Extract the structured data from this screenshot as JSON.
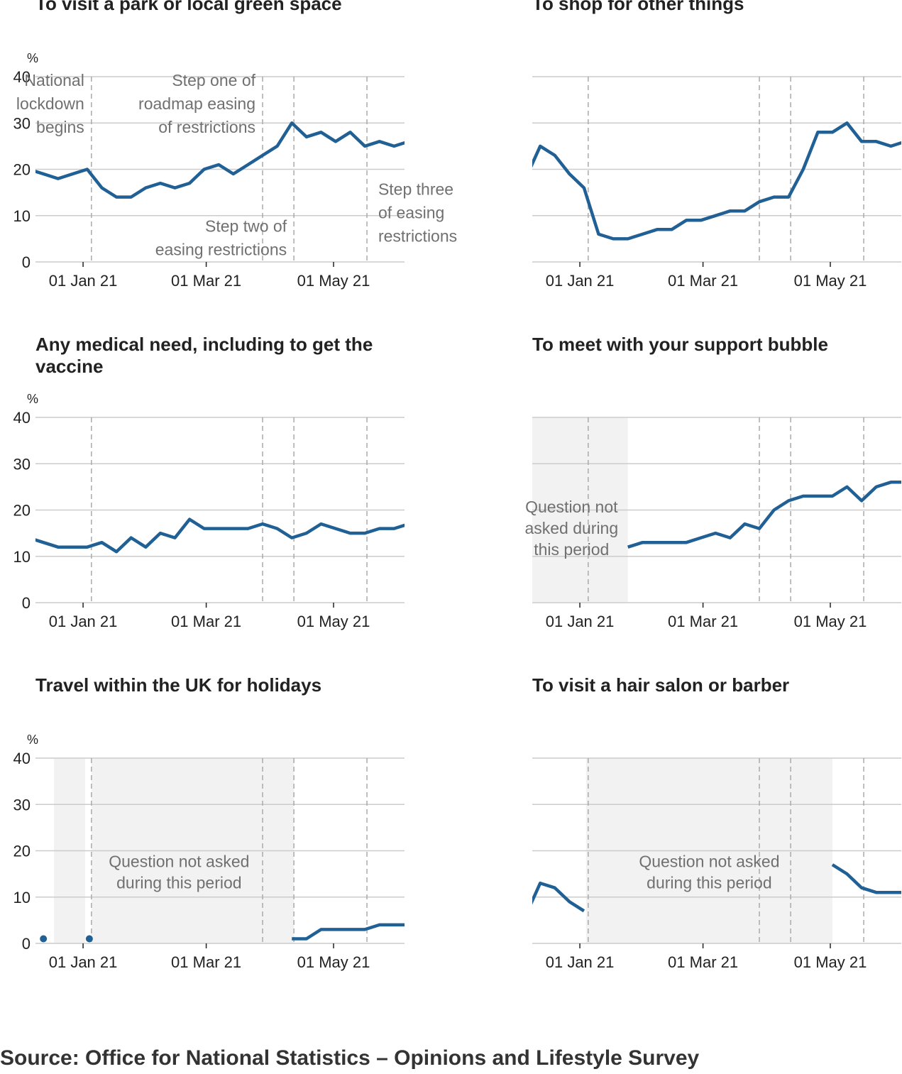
{
  "colors": {
    "line": "#206095",
    "grid": "#cccccc",
    "event": "#aaaaaa",
    "shade": "#f2f2f2",
    "axis": "#222222",
    "annotation": "#707070"
  },
  "source": "Source: Office for National Statistics – Opinions and Lifestyle Survey",
  "chart_data": [
    {
      "type": "line",
      "title": "To visit a park or local green space",
      "ylabel": "%",
      "ylim": [
        0,
        40
      ],
      "yticks": [
        0,
        10,
        20,
        30,
        40
      ],
      "xlim": [
        -22.8,
        154
      ],
      "xticks": [
        {
          "v": 0,
          "label": "01 Jan 21"
        },
        {
          "v": 59,
          "label": "01 Mar 21"
        },
        {
          "v": 120,
          "label": "01 May 21"
        }
      ],
      "events": [
        4,
        86,
        101,
        136
      ],
      "event_labels": [
        {
          "x": 4,
          "y": 38,
          "anchor": "end",
          "lines": [
            "National",
            "lockdown",
            "begins"
          ]
        },
        {
          "x": 86,
          "y": 38,
          "anchor": "end",
          "lines": [
            "Step one of",
            "roadmap easing",
            "of restrictions"
          ]
        },
        {
          "x": 101,
          "y": 6.5,
          "anchor": "end",
          "lines": [
            "Step two of",
            "easing restrictions"
          ]
        },
        {
          "x": 138,
          "y": 14.5,
          "anchor": "start",
          "lines": [
            "Step three",
            "of easing",
            "restrictions"
          ]
        }
      ],
      "show_y_labels": true,
      "series": [
        {
          "name": "Percent",
          "segments": [
            {
              "x": [
                -26,
                -19,
                -12,
                -5,
                2,
                9,
                16,
                23,
                30,
                37,
                44,
                51,
                58,
                65,
                72,
                79,
                86,
                93,
                100,
                107,
                114,
                121,
                128,
                135,
                142,
                149,
                156
              ],
              "y": [
                20,
                19,
                18,
                19,
                20,
                16,
                14,
                14,
                16,
                17,
                16,
                17,
                20,
                21,
                19,
                21,
                23,
                25,
                30,
                27,
                28,
                26,
                28,
                25,
                26,
                25,
                26
              ]
            }
          ]
        }
      ]
    },
    {
      "type": "line",
      "title": "To shop for other things",
      "ylabel": "",
      "ylim": [
        0,
        40
      ],
      "yticks": [
        0,
        10,
        20,
        30,
        40
      ],
      "xlim": [
        -22.8,
        154
      ],
      "xticks": [
        {
          "v": 0,
          "label": "01 Jan 21"
        },
        {
          "v": 59,
          "label": "01 Mar 21"
        },
        {
          "v": 120,
          "label": "01 May 21"
        }
      ],
      "events": [
        4,
        86,
        101,
        136
      ],
      "show_y_labels": false,
      "series": [
        {
          "name": "Percent",
          "segments": [
            {
              "x": [
                -26,
                -19,
                -12,
                -5,
                2,
                9,
                16,
                23,
                30,
                37,
                44,
                51,
                58,
                65,
                72,
                79,
                86,
                93,
                100,
                107,
                114,
                121,
                128,
                135,
                142,
                149,
                156
              ],
              "y": [
                18,
                25,
                23,
                19,
                16,
                6,
                5,
                5,
                6,
                7,
                7,
                9,
                9,
                10,
                11,
                11,
                13,
                14,
                14,
                20,
                28,
                28,
                30,
                26,
                26,
                25,
                26
              ]
            }
          ]
        }
      ]
    },
    {
      "type": "line",
      "title": "Any medical need, including to get the vaccine",
      "ylabel": "%",
      "ylim": [
        0,
        40
      ],
      "yticks": [
        0,
        10,
        20,
        30,
        40
      ],
      "xlim": [
        -22.8,
        154
      ],
      "xticks": [
        {
          "v": 0,
          "label": "01 Jan 21"
        },
        {
          "v": 59,
          "label": "01 Mar 21"
        },
        {
          "v": 120,
          "label": "01 May 21"
        }
      ],
      "events": [
        4,
        86,
        101,
        136
      ],
      "show_y_labels": true,
      "series": [
        {
          "name": "Percent",
          "segments": [
            {
              "x": [
                -26,
                -19,
                -12,
                -5,
                2,
                9,
                16,
                23,
                30,
                37,
                44,
                51,
                58,
                65,
                72,
                79,
                86,
                93,
                100,
                107,
                114,
                121,
                128,
                135,
                142,
                149,
                156
              ],
              "y": [
                14,
                13,
                12,
                12,
                12,
                13,
                11,
                14,
                12,
                15,
                14,
                18,
                16,
                16,
                16,
                16,
                17,
                16,
                14,
                15,
                17,
                16,
                15,
                15,
                16,
                16,
                17
              ]
            }
          ]
        }
      ]
    },
    {
      "type": "line",
      "title": "To meet with your support bubble",
      "ylabel": "",
      "ylim": [
        0,
        40
      ],
      "yticks": [
        0,
        10,
        20,
        30,
        40
      ],
      "xlim": [
        -22.8,
        154
      ],
      "xticks": [
        {
          "v": 0,
          "label": "01 Jan 21"
        },
        {
          "v": 59,
          "label": "01 Mar 21"
        },
        {
          "v": 120,
          "label": "01 May 21"
        }
      ],
      "events": [
        4,
        86,
        101,
        136
      ],
      "shaded": [
        {
          "x0": -22.8,
          "x1": 23,
          "label": [
            "Question not",
            "asked during",
            "this period"
          ],
          "label_x": -4,
          "label_y": 19.5
        }
      ],
      "show_y_labels": false,
      "series": [
        {
          "name": "Percent",
          "segments": [
            {
              "x": [
                23,
                30,
                37,
                44,
                51,
                58,
                65,
                72,
                79,
                86,
                93,
                100,
                107,
                114,
                121,
                128,
                135,
                142,
                149,
                156
              ],
              "y": [
                12,
                13,
                13,
                13,
                13,
                14,
                15,
                14,
                17,
                16,
                20,
                22,
                23,
                23,
                23,
                25,
                22,
                25,
                26,
                26
              ]
            }
          ]
        }
      ]
    },
    {
      "type": "line",
      "title": "Travel within the UK for holidays",
      "ylabel": "%",
      "ylim": [
        0,
        40
      ],
      "yticks": [
        0,
        10,
        20,
        30,
        40
      ],
      "xlim": [
        -22.8,
        154
      ],
      "xticks": [
        {
          "v": 0,
          "label": "01 Jan 21"
        },
        {
          "v": 59,
          "label": "01 Mar 21"
        },
        {
          "v": 120,
          "label": "01 May 21"
        }
      ],
      "events": [
        4,
        86,
        101,
        136
      ],
      "shaded": [
        {
          "x0": -14,
          "x1": 1
        },
        {
          "x0": 4,
          "x1": 101,
          "label": [
            "Question not asked",
            "during this period"
          ],
          "label_x": 46,
          "label_y": 16.5
        }
      ],
      "show_y_labels": true,
      "series": [
        {
          "name": "Percent",
          "segments": [
            {
              "x": [
                100,
                107,
                114,
                121,
                128,
                135,
                142,
                149,
                156
              ],
              "y": [
                1,
                1,
                3,
                3,
                3,
                3,
                4,
                4,
                4
              ]
            }
          ],
          "points": [
            {
              "x": -19,
              "y": 1
            },
            {
              "x": 3,
              "y": 1
            }
          ]
        }
      ]
    },
    {
      "type": "line",
      "title": "To visit a hair salon or barber",
      "ylabel": "",
      "ylim": [
        0,
        40
      ],
      "yticks": [
        0,
        10,
        20,
        30,
        40
      ],
      "xlim": [
        -22.8,
        154
      ],
      "xticks": [
        {
          "v": 0,
          "label": "01 Jan 21"
        },
        {
          "v": 59,
          "label": "01 Mar 21"
        },
        {
          "v": 120,
          "label": "01 May 21"
        }
      ],
      "events": [
        4,
        86,
        101,
        136
      ],
      "shaded": [
        {
          "x0": 3,
          "x1": 121,
          "label": [
            "Question not asked",
            "during this period"
          ],
          "label_x": 62,
          "label_y": 16.5
        }
      ],
      "show_y_labels": false,
      "series": [
        {
          "name": "Percent",
          "segments": [
            {
              "x": [
                -26,
                -19,
                -12,
                -5,
                2
              ],
              "y": [
                6,
                13,
                12,
                9,
                7
              ]
            },
            {
              "x": [
                121,
                128,
                135,
                142,
                149,
                156
              ],
              "y": [
                17,
                15,
                12,
                11,
                11,
                11
              ]
            }
          ]
        }
      ]
    }
  ]
}
